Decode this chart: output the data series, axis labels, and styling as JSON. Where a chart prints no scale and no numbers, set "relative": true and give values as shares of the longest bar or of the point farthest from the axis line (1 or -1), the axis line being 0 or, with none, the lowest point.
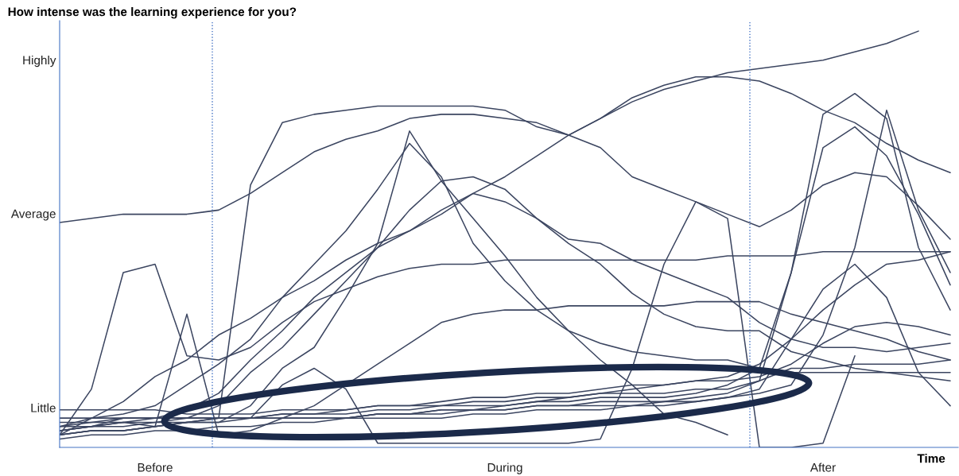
{
  "chart_data": {
    "type": "line",
    "title": "How intense was the learning experience for you?",
    "xlabel": "Time",
    "relative": true,
    "categories": [
      null,
      null,
      null,
      "Before",
      null,
      null,
      null,
      null,
      null,
      null,
      null,
      null,
      null,
      null,
      "During",
      null,
      null,
      null,
      null,
      null,
      null,
      null,
      null,
      null,
      "After",
      null,
      null,
      null,
      null
    ],
    "annotations": [
      "Little",
      "Average",
      "Highly"
    ],
    "legend": false,
    "marker": "none",
    "line_style": "solid",
    "series": [
      {
        "color": "#3b4560",
        "values": [
          0.54,
          0.55,
          0.56,
          0.56,
          0.56,
          0.57,
          0.61,
          0.66,
          0.71,
          0.74,
          0.76,
          0.79,
          0.8,
          0.8,
          0.79,
          0.78,
          0.75,
          0.72,
          0.65,
          0.62,
          0.59,
          0.56,
          0.53,
          0.57,
          0.63,
          0.66,
          0.65,
          0.58,
          0.5
        ]
      },
      {
        "color": "#3b4560",
        "values": [
          0.07,
          0.07,
          0.07,
          0.07,
          0.07,
          0.07,
          0.63,
          0.78,
          0.8,
          0.81,
          0.82,
          0.82,
          0.82,
          0.82,
          0.81,
          0.77,
          0.75,
          0.79,
          0.84,
          0.87,
          0.89,
          0.89,
          0.88,
          0.85,
          0.81,
          0.78,
          0.73,
          0.69,
          0.66
        ]
      },
      {
        "color": "#3b4560",
        "values": [
          0.03,
          0.07,
          0.11,
          0.17,
          0.21,
          0.27,
          0.31,
          0.36,
          0.4,
          0.45,
          0.49,
          0.52,
          0.57,
          0.61,
          0.65,
          0.7,
          0.75,
          0.79,
          0.83,
          0.86,
          0.88,
          0.9,
          0.91,
          0.92,
          0.93,
          0.95,
          0.97,
          1,
          null
        ]
      },
      {
        "color": "#3b4560",
        "values": [
          0.03,
          0.04,
          0.04,
          0.05,
          0.06,
          0.06,
          0.1,
          0.19,
          0.24,
          0.36,
          0.49,
          0.76,
          0.64,
          0.55,
          0.46,
          0.36,
          0.28,
          0.21,
          0.15,
          0.08,
          0.06,
          0.03,
          null,
          null,
          null,
          null,
          null,
          null,
          null
        ]
      },
      {
        "color": "#3b4560",
        "values": [
          0.05,
          0.07,
          0.08,
          0.1,
          0.15,
          0.2,
          0.26,
          0.36,
          0.44,
          0.52,
          0.62,
          0.73,
          0.65,
          0.49,
          0.4,
          0.33,
          0.28,
          0.25,
          0.23,
          0.22,
          0.21,
          0.21,
          0.19,
          0.18,
          0.18,
          0.18,
          0.18,
          0.18,
          0.18
        ]
      },
      {
        "color": "#3b4560",
        "values": [
          0.05,
          0.06,
          0.07,
          0.07,
          0.07,
          0.1,
          0.18,
          0.24,
          0.32,
          0.4,
          0.48,
          0.57,
          0.64,
          0.65,
          0.62,
          0.55,
          0.49,
          0.44,
          0.37,
          0.32,
          0.29,
          0.28,
          0.28,
          0.23,
          0.21,
          0.19,
          0.18,
          0.17,
          0.16
        ]
      },
      {
        "color": "#3b4560",
        "values": [
          0.04,
          0.05,
          0.07,
          0.07,
          0.09,
          0.13,
          0.21,
          0.28,
          0.36,
          0.42,
          0.48,
          0.52,
          0.56,
          0.61,
          0.59,
          0.55,
          0.5,
          0.49,
          0.45,
          0.42,
          0.39,
          0.36,
          0.3,
          0.26,
          0.24,
          0.24,
          0.23,
          0.24,
          0.25
        ]
      },
      {
        "color": "#3b4560",
        "values": [
          0.03,
          0.14,
          0.42,
          0.44,
          0.22,
          0.21,
          0.24,
          0.3,
          0.35,
          0.38,
          0.41,
          0.43,
          0.44,
          0.44,
          0.45,
          0.45,
          0.45,
          0.45,
          0.45,
          0.45,
          0.45,
          0.46,
          0.46,
          0.46,
          0.47,
          0.47,
          0.47,
          0.47,
          0.47
        ]
      },
      {
        "color": "#3b4560",
        "values": [
          0.04,
          0.05,
          0.06,
          0.05,
          0.32,
          0.03,
          0.04,
          0.07,
          0.1,
          0.15,
          0.2,
          0.25,
          0.3,
          0.32,
          0.33,
          0.33,
          0.34,
          0.34,
          0.34,
          0.34,
          0.35,
          0.35,
          0.35,
          0.32,
          0.3,
          0.28,
          0.26,
          0.23,
          0.21
        ]
      },
      {
        "color": "#3b4560",
        "values": [
          0.07,
          0.07,
          0.07,
          0.07,
          0.07,
          0.07,
          0.07,
          0.15,
          0.19,
          0.14,
          0.01,
          0.01,
          0.01,
          0.01,
          0.01,
          0.01,
          0.01,
          0.02,
          0.19,
          0.44,
          0.59,
          0.55,
          0,
          0,
          0.01,
          0.22,
          null,
          null,
          null
        ]
      },
      {
        "color": "#3b4560",
        "values": [
          0.03,
          0.04,
          0.04,
          0.05,
          0.06,
          0.07,
          0.07,
          0.07,
          0.07,
          0.07,
          0.08,
          0.08,
          0.09,
          0.09,
          0.09,
          0.1,
          0.1,
          0.11,
          0.11,
          0.11,
          0.12,
          0.13,
          0.16,
          0.42,
          0.8,
          0.85,
          0.79,
          0.48,
          0.33
        ]
      },
      {
        "color": "#3b4560",
        "values": [
          0.04,
          0.05,
          0.05,
          0.06,
          0.07,
          0.07,
          0.07,
          0.08,
          0.08,
          0.08,
          0.09,
          0.09,
          0.1,
          0.1,
          0.1,
          0.11,
          0.11,
          0.12,
          0.12,
          0.12,
          0.13,
          0.15,
          0.19,
          0.42,
          0.72,
          0.77,
          0.7,
          0.56,
          0.39
        ]
      },
      {
        "color": "#3b4560",
        "values": [
          0.05,
          0.05,
          0.06,
          0.06,
          0.06,
          0.07,
          0.07,
          0.07,
          0.07,
          0.07,
          0.08,
          0.08,
          0.09,
          0.09,
          0.09,
          0.1,
          0.1,
          0.1,
          0.1,
          0.11,
          0.11,
          0.12,
          0.14,
          0.26,
          0.38,
          0.44,
          0.36,
          0.18,
          0.1
        ]
      },
      {
        "color": "#3b4560",
        "values": [
          0.02,
          0.03,
          0.03,
          0.04,
          0.04,
          0.05,
          0.05,
          0.06,
          0.06,
          0.07,
          0.07,
          0.07,
          0.07,
          0.08,
          0.08,
          0.09,
          0.09,
          0.09,
          0.1,
          0.1,
          0.11,
          0.12,
          0.13,
          0.15,
          0.27,
          0.48,
          0.81,
          0.57,
          0.42
        ]
      },
      {
        "color": "#3b4560",
        "values": [
          0.09,
          0.09,
          0.09,
          0.09,
          0.08,
          0.08,
          0.08,
          0.09,
          0.09,
          0.09,
          0.1,
          0.1,
          0.1,
          0.11,
          0.11,
          0.12,
          0.12,
          0.13,
          0.13,
          0.13,
          0.14,
          0.14,
          0.16,
          0.19,
          0.19,
          0.2,
          0.2,
          0.2,
          0.21
        ]
      },
      {
        "color": "#3b4560",
        "values": [
          0.06,
          0.06,
          0.06,
          0.07,
          0.07,
          0.07,
          0.07,
          0.08,
          0.08,
          0.09,
          0.1,
          0.1,
          0.11,
          0.12,
          0.12,
          0.13,
          0.13,
          0.14,
          0.15,
          0.15,
          0.16,
          0.16,
          0.17,
          0.2,
          0.25,
          0.29,
          0.3,
          0.29,
          0.27
        ]
      },
      {
        "color": "#3b4560",
        "values": [
          0.03,
          0.04,
          0.04,
          0.05,
          0.06,
          0.06,
          0.07,
          0.07,
          0.07,
          0.07,
          0.08,
          0.08,
          0.08,
          0.09,
          0.1,
          0.11,
          0.12,
          0.13,
          0.14,
          0.15,
          0.16,
          0.17,
          0.2,
          0.26,
          0.33,
          0.39,
          0.44,
          0.45,
          0.47
        ]
      }
    ]
  }
}
